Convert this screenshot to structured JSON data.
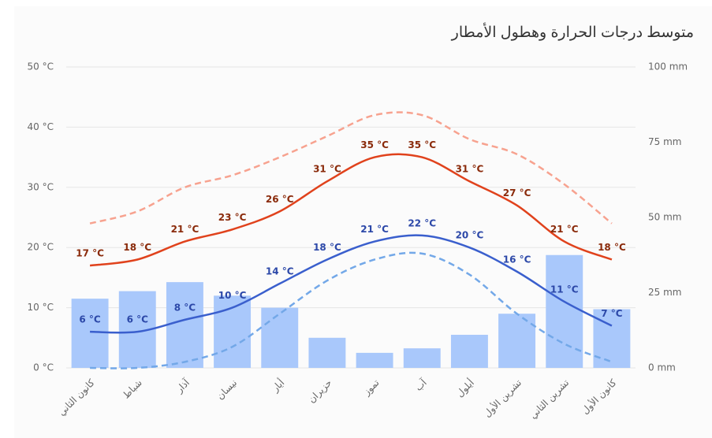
{
  "chart_data": {
    "type": "bar-line",
    "title": "متوسط درجات الحرارة وهطول الأمطار",
    "categories": [
      "كانون الثاني",
      "شباط",
      "آذار",
      "نيسان",
      "أيار",
      "حزيران",
      "تموز",
      "آب",
      "أيلول",
      "تشرين الأول",
      "تشرين الثاني",
      "كانون الأول"
    ],
    "ylim": [
      0,
      50
    ],
    "yticks": [
      {
        "value": 0,
        "label": "0 °C"
      },
      {
        "value": 10,
        "label": "10 °C"
      },
      {
        "value": 20,
        "label": "20 °C"
      },
      {
        "value": 30,
        "label": "30 °C"
      },
      {
        "value": 40,
        "label": "40 °C"
      },
      {
        "value": 50,
        "label": "50 °C"
      }
    ],
    "y2lim": [
      0,
      100
    ],
    "y2ticks": [
      {
        "value": 0,
        "label": "0 mm"
      },
      {
        "value": 25,
        "label": "25 mm"
      },
      {
        "value": 50,
        "label": "50 mm"
      },
      {
        "value": 75,
        "label": "75 mm"
      },
      {
        "value": 100,
        "label": "100 mm"
      }
    ],
    "grid": true,
    "series": [
      {
        "type": "bar",
        "axis": "y2",
        "color": "#a9c8fb",
        "values": [
          23,
          25.5,
          28.5,
          24,
          20,
          10,
          5,
          6.5,
          11,
          18,
          37.5,
          19.5
        ]
      },
      {
        "type": "line",
        "color": "#e0421c",
        "label_color": "#8a2a0a",
        "values": [
          17,
          18,
          21,
          23,
          26,
          31,
          35,
          35,
          31,
          27,
          21,
          18
        ],
        "value_labels": [
          "17 °C",
          "18 °C",
          "21 °C",
          "23 °C",
          "26 °C",
          "31 °C",
          "35 °C",
          "35 °C",
          "31 °C",
          "27 °C",
          "21 °C",
          "18 °C"
        ]
      },
      {
        "type": "line",
        "color": "#3a5fcd",
        "label_color": "#2c48a8",
        "values": [
          6,
          6,
          8,
          10,
          14,
          18,
          21,
          22,
          20,
          16,
          11,
          7
        ],
        "value_labels": [
          "6 °C",
          "6 °C",
          "8 °C",
          "10 °C",
          "14 °C",
          "18 °C",
          "21 °C",
          "22 °C",
          "20 °C",
          "16 °C",
          "11 °C",
          "7 °C"
        ]
      },
      {
        "type": "line",
        "dashed": true,
        "color": "#f7a28f",
        "values": [
          24,
          26,
          30,
          32,
          35,
          38.5,
          42,
          42,
          38,
          35.5,
          30.5,
          24
        ]
      },
      {
        "type": "line",
        "dashed": true,
        "color": "#73a8e8",
        "values": [
          0,
          0,
          1,
          3.5,
          9,
          14.5,
          18,
          19,
          15.5,
          9,
          4,
          1
        ]
      }
    ]
  }
}
